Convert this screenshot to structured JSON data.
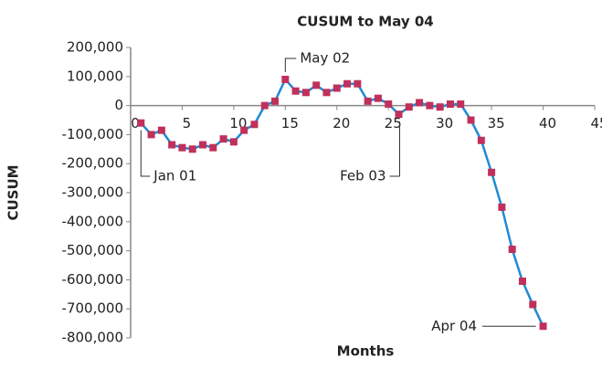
{
  "chart_data": {
    "type": "line",
    "title": "CUSUM to May 04",
    "x_label": "Months",
    "y_label": "CUSUM",
    "x": [
      1,
      2,
      3,
      4,
      5,
      6,
      7,
      8,
      9,
      10,
      11,
      12,
      13,
      14,
      15,
      16,
      17,
      18,
      19,
      20,
      21,
      22,
      23,
      24,
      25,
      26,
      27,
      28,
      29,
      30,
      31,
      32,
      33,
      34,
      35,
      36,
      37,
      38,
      39,
      40
    ],
    "series": [
      {
        "name": "CUSUM",
        "color": "#1f8ad4",
        "marker_color": "#c0305a",
        "values": [
          -60000,
          -100000,
          -85000,
          -135000,
          -145000,
          -150000,
          -135000,
          -145000,
          -115000,
          -125000,
          -85000,
          -65000,
          0,
          15000,
          90000,
          50000,
          45000,
          70000,
          45000,
          60000,
          75000,
          75000,
          15000,
          25000,
          5000,
          -30000,
          -5000,
          10000,
          0,
          -5000,
          5000,
          5000,
          -50000,
          -120000,
          -230000,
          -350000,
          -495000,
          -605000,
          -685000,
          -760000
        ]
      }
    ],
    "xlim": [
      0,
      45
    ],
    "xticks": [
      0,
      5,
      10,
      15,
      20,
      25,
      30,
      35,
      40,
      45
    ],
    "ylim": [
      -800000,
      200000
    ],
    "yticks": [
      {
        "value": 200000,
        "label": "200,000"
      },
      {
        "value": 100000,
        "label": "100,000"
      },
      0,
      {
        "value": -100000,
        "label": "-100,000"
      },
      {
        "value": -200000,
        "label": "-200,000"
      },
      {
        "value": -300000,
        "label": "-300,000"
      },
      {
        "value": -400000,
        "label": "-400,000"
      },
      {
        "value": -500000,
        "label": "-500,000"
      },
      {
        "value": -600000,
        "label": "-600,000"
      },
      {
        "value": -700000,
        "label": "-700,000"
      },
      {
        "value": -800000,
        "label": "-800,000"
      }
    ],
    "annotations": [
      "May 02",
      "Jan 01",
      "Feb 03",
      "Apr 04"
    ]
  }
}
